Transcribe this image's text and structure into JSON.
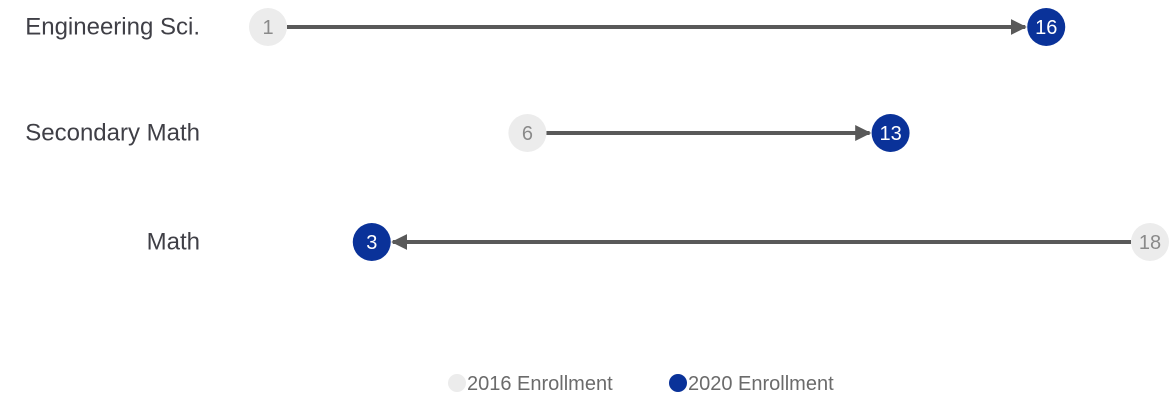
{
  "chart_data": {
    "type": "dumbbell",
    "categories": [
      "Engineering Sci.",
      "Secondary Math",
      "Math"
    ],
    "series": [
      {
        "name": "2016 Enrollment",
        "values": [
          1,
          6,
          18
        ],
        "color": "#ececec"
      },
      {
        "name": "2020 Enrollment",
        "values": [
          16,
          13,
          3
        ],
        "color": "#0a3299"
      }
    ],
    "xlim": [
      1,
      18
    ],
    "connector_color": "#595959",
    "grid": false,
    "legend_position": "bottom-center"
  }
}
